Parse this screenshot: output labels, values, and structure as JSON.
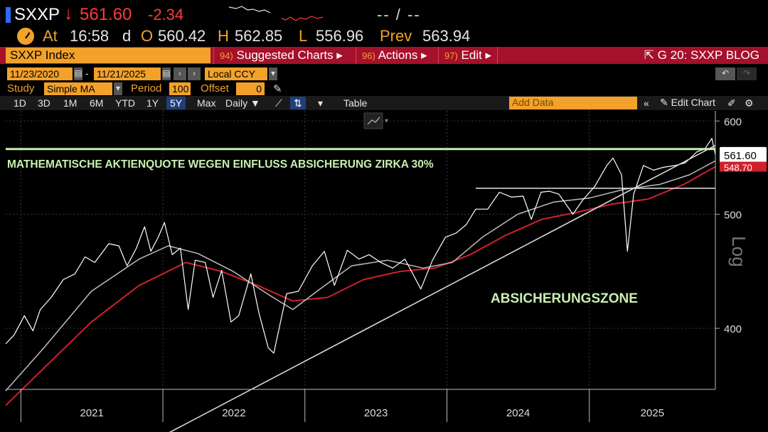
{
  "quote": {
    "ticker": "SXXP",
    "arrow": "↓",
    "last": "561.60",
    "change": "-2.34",
    "placeholder": "-- / --",
    "at_label": "At",
    "time": "16:58",
    "d_label": "d",
    "open_label": "O",
    "open": "560.42",
    "high_label": "H",
    "high": "562.85",
    "low_label": "L",
    "low": "556.96",
    "prev_label": "Prev",
    "prev": "563.94"
  },
  "function_bar": {
    "security": "SXXP Index",
    "suggested": {
      "num": "94)",
      "label": "Suggested Charts ▸"
    },
    "actions": {
      "num": "96)",
      "label": "Actions ▸"
    },
    "edit": {
      "num": "97)",
      "label": "Edit ▸"
    },
    "blog": "G 20: SXXP BLOG"
  },
  "toolbar": {
    "start_date": "11/23/2020",
    "date_sep": "-",
    "end_date": "11/21/2025",
    "currency": "Local CCY",
    "study_label": "Study",
    "study_value": "Simple MA",
    "period_label": "Period",
    "period_value": "100",
    "offset_label": "Offset",
    "offset_value": "0",
    "periods": [
      "1D",
      "3D",
      "1M",
      "6M",
      "YTD",
      "1Y",
      "5Y",
      "Max"
    ],
    "active_period": "5Y",
    "frequency": "Daily ▼",
    "table": "Table",
    "add_data": "Add Data",
    "edit_chart": "Edit Chart"
  },
  "colors": {
    "price": "#ffffff",
    "ma_short": "#bdbdbd",
    "ma_long": "#d0202c",
    "annotation": "#c8f0b0",
    "accent": "#f2a12b",
    "function_bar": "#a5102a"
  },
  "chart_data": {
    "type": "line",
    "scale": "log",
    "ylim": [
      355,
      612
    ],
    "yticks": [
      400,
      500,
      600
    ],
    "xticks": [
      "2021",
      "2022",
      "2023",
      "2024",
      "2025"
    ],
    "xlim": [
      "2020-11-23",
      "2025-11-21"
    ],
    "axis_label": "Log",
    "last_price_label": "561.60",
    "ma_long_label": "548.70",
    "series": [
      {
        "role": "price",
        "points": [
          [
            "2020-11-23",
            388
          ],
          [
            "2020-12-15",
            395
          ],
          [
            "2021-01-10",
            410
          ],
          [
            "2021-02-01",
            398
          ],
          [
            "2021-02-20",
            415
          ],
          [
            "2021-03-20",
            425
          ],
          [
            "2021-04-20",
            440
          ],
          [
            "2021-05-20",
            445
          ],
          [
            "2021-06-15",
            460
          ],
          [
            "2021-07-10",
            455
          ],
          [
            "2021-08-15",
            472
          ],
          [
            "2021-09-10",
            470
          ],
          [
            "2021-10-01",
            452
          ],
          [
            "2021-10-25",
            468
          ],
          [
            "2021-11-15",
            488
          ],
          [
            "2021-12-01",
            465
          ],
          [
            "2021-12-20",
            478
          ],
          [
            "2022-01-05",
            492
          ],
          [
            "2022-01-25",
            462
          ],
          [
            "2022-02-15",
            468
          ],
          [
            "2022-03-07",
            415
          ],
          [
            "2022-03-25",
            457
          ],
          [
            "2022-04-20",
            455
          ],
          [
            "2022-05-10",
            425
          ],
          [
            "2022-06-01",
            448
          ],
          [
            "2022-06-25",
            405
          ],
          [
            "2022-07-15",
            410
          ],
          [
            "2022-08-15",
            445
          ],
          [
            "2022-09-05",
            412
          ],
          [
            "2022-09-29",
            385
          ],
          [
            "2022-10-13",
            381
          ],
          [
            "2022-11-15",
            428
          ],
          [
            "2022-12-15",
            430
          ],
          [
            "2023-01-20",
            452
          ],
          [
            "2023-02-20",
            465
          ],
          [
            "2023-03-18",
            435
          ],
          [
            "2023-04-20",
            466
          ],
          [
            "2023-05-20",
            458
          ],
          [
            "2023-06-15",
            462
          ],
          [
            "2023-07-15",
            455
          ],
          [
            "2023-08-15",
            450
          ],
          [
            "2023-09-15",
            458
          ],
          [
            "2023-10-26",
            432
          ],
          [
            "2023-11-25",
            457
          ],
          [
            "2023-12-28",
            478
          ],
          [
            "2024-01-25",
            482
          ],
          [
            "2024-02-20",
            490
          ],
          [
            "2024-03-15",
            505
          ],
          [
            "2024-04-15",
            505
          ],
          [
            "2024-05-15",
            522
          ],
          [
            "2024-06-15",
            517
          ],
          [
            "2024-07-15",
            518
          ],
          [
            "2024-08-05",
            495
          ],
          [
            "2024-08-30",
            522
          ],
          [
            "2024-09-20",
            523
          ],
          [
            "2024-10-15",
            520
          ],
          [
            "2024-11-20",
            500
          ],
          [
            "2024-12-15",
            514
          ],
          [
            "2025-01-15",
            528
          ],
          [
            "2025-02-15",
            550
          ],
          [
            "2025-03-03",
            558
          ],
          [
            "2025-03-25",
            540
          ],
          [
            "2025-04-09",
            465
          ],
          [
            "2025-04-25",
            520
          ],
          [
            "2025-05-20",
            550
          ],
          [
            "2025-06-15",
            545
          ],
          [
            "2025-07-10",
            548
          ],
          [
            "2025-08-10",
            550
          ],
          [
            "2025-09-05",
            553
          ],
          [
            "2025-10-05",
            565
          ],
          [
            "2025-10-25",
            568
          ],
          [
            "2025-11-12",
            580
          ],
          [
            "2025-11-21",
            561.6
          ]
        ]
      },
      {
        "role": "moving-average-short",
        "points": [
          [
            "2020-11-23",
            354
          ],
          [
            "2021-03-01",
            385
          ],
          [
            "2021-07-01",
            430
          ],
          [
            "2021-11-01",
            458
          ],
          [
            "2022-01-15",
            470
          ],
          [
            "2022-04-01",
            463
          ],
          [
            "2022-07-01",
            447
          ],
          [
            "2022-10-01",
            427
          ],
          [
            "2022-12-01",
            415
          ],
          [
            "2023-02-01",
            430
          ],
          [
            "2023-05-01",
            452
          ],
          [
            "2023-08-01",
            457
          ],
          [
            "2023-11-01",
            450
          ],
          [
            "2024-01-15",
            455
          ],
          [
            "2024-04-01",
            478
          ],
          [
            "2024-07-01",
            500
          ],
          [
            "2024-10-01",
            512
          ],
          [
            "2025-01-01",
            516
          ],
          [
            "2025-04-01",
            525
          ],
          [
            "2025-07-01",
            530
          ],
          [
            "2025-09-15",
            540
          ],
          [
            "2025-11-21",
            555
          ]
        ]
      },
      {
        "role": "moving-average-long",
        "points": [
          [
            "2020-11-23",
            344
          ],
          [
            "2021-03-01",
            370
          ],
          [
            "2021-07-01",
            405
          ],
          [
            "2021-11-01",
            435
          ],
          [
            "2022-03-01",
            455
          ],
          [
            "2022-06-01",
            447
          ],
          [
            "2022-09-01",
            435
          ],
          [
            "2022-12-01",
            422
          ],
          [
            "2023-03-01",
            425
          ],
          [
            "2023-06-01",
            440
          ],
          [
            "2023-09-01",
            447
          ],
          [
            "2023-12-01",
            450
          ],
          [
            "2024-03-01",
            462
          ],
          [
            "2024-06-01",
            480
          ],
          [
            "2024-09-01",
            495
          ],
          [
            "2024-12-01",
            502
          ],
          [
            "2025-03-01",
            510
          ],
          [
            "2025-06-01",
            515
          ],
          [
            "2025-09-01",
            530
          ],
          [
            "2025-11-21",
            548.7
          ]
        ]
      }
    ],
    "annotations": {
      "headline": "MATHEMATISCHE AKTIENQUOTE WEGEN EINFLUSS ABSICHERUNG ZIRKA 30%",
      "zone_label": "ABSICHERUNGSZONE",
      "horizontal_level_upper": 568,
      "horizontal_level_lower": 526,
      "trendline": [
        [
          "2021-12-31",
          324
        ],
        [
          "2025-11-21",
          572
        ]
      ]
    }
  }
}
